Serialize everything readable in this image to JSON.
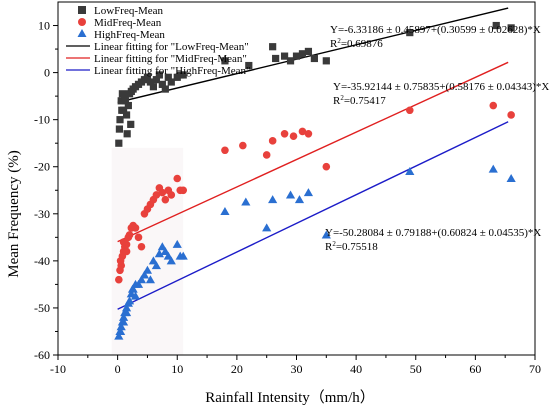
{
  "chart_data": {
    "type": "scatter",
    "xlabel": "Rainfall Intensity（mm/h）",
    "ylabel": "Mean Frequency (%)",
    "xlim": [
      -10,
      70
    ],
    "ylim": [
      -60,
      15
    ],
    "xticks": [
      -10,
      0,
      10,
      20,
      30,
      40,
      50,
      60,
      70
    ],
    "yticks": [
      -60,
      -50,
      -40,
      -30,
      -20,
      -10,
      0,
      10
    ],
    "legend_position": "top-left",
    "series": [
      {
        "name": "LowFreq-Mean",
        "marker": "square",
        "color": "#3a3a3a",
        "x": [
          0.2,
          0.4,
          0.6,
          0.8,
          1,
          1.2,
          1.5,
          1.8,
          2,
          2.3,
          2.6,
          3,
          3.5,
          4,
          4.5,
          5,
          5.5,
          6,
          6.5,
          7,
          7.5,
          8,
          8.5,
          9,
          10,
          10.5,
          11,
          0.3,
          1.6,
          2.2,
          0.7,
          1.3,
          18,
          22,
          26,
          26.5,
          28,
          29,
          30,
          31,
          32,
          33,
          35,
          49,
          63.5,
          66
        ],
        "y": [
          -15,
          -10,
          -6,
          -4.5,
          -8,
          -5,
          -9,
          -7,
          -4.5,
          -4,
          -3.5,
          -3,
          -2.5,
          -2,
          -1.5,
          -1,
          -2,
          -3,
          -1.5,
          -0.5,
          -2.5,
          -3.5,
          -1,
          -2,
          -1,
          -0.5,
          -0.5,
          -12,
          -13,
          -11,
          -8,
          -6,
          2.5,
          1.5,
          5.5,
          3,
          3.5,
          2.5,
          3.5,
          4,
          4.5,
          3,
          2.5,
          8.5,
          10,
          9.5
        ]
      },
      {
        "name": "MidFreq-Mean",
        "marker": "circle",
        "color": "#e8413c",
        "x": [
          0.2,
          0.4,
          0.6,
          0.8,
          1,
          1.2,
          1.5,
          1.8,
          2,
          2.3,
          2.6,
          3,
          3.5,
          4,
          4.5,
          5,
          5.5,
          6,
          6.5,
          7,
          7.5,
          8,
          8.5,
          9,
          10,
          10.5,
          11,
          0.5,
          1,
          1.5,
          18,
          21,
          25,
          26,
          28,
          29.5,
          31,
          32,
          35,
          49,
          63,
          66
        ],
        "y": [
          -44,
          -42,
          -41,
          -39,
          -38,
          -37,
          -36.5,
          -35,
          -34.5,
          -33,
          -32.5,
          -33,
          -35,
          -37,
          -30,
          -29,
          -28,
          -27,
          -26,
          -24.5,
          -25.5,
          -27,
          -25,
          -26,
          -22.5,
          -25,
          -25,
          -40,
          -36,
          -38,
          -16.5,
          -15.5,
          -17.5,
          -14.5,
          -13,
          -13.5,
          -12.5,
          -13,
          -20,
          -8,
          -7,
          -9
        ]
      },
      {
        "name": "HighFreq-Mean",
        "marker": "triangle",
        "color": "#2a6fd1",
        "x": [
          0.2,
          0.4,
          0.6,
          0.8,
          1,
          1.2,
          1.5,
          1.8,
          2,
          2.3,
          2.6,
          3,
          3.5,
          4,
          4.5,
          5,
          5.5,
          6,
          6.5,
          7,
          7.5,
          8,
          8.5,
          9,
          10,
          10.5,
          11,
          0.5,
          1,
          1.5,
          2.5,
          3,
          18,
          21.5,
          25,
          26,
          29,
          30.5,
          32,
          35,
          49,
          63,
          66
        ],
        "y": [
          -56,
          -55,
          -54,
          -53,
          -52,
          -51,
          -50,
          -49,
          -48.5,
          -47,
          -46,
          -47.5,
          -45,
          -44,
          -43,
          -42,
          -44,
          -40,
          -41,
          -38.5,
          -37,
          -38,
          -39,
          -40,
          -36.5,
          -39,
          -39,
          -55,
          -53,
          -51,
          -46,
          -45,
          -29.5,
          -27.5,
          -33,
          -27,
          -26,
          -27,
          -25.5,
          -34.5,
          -21,
          -20.5,
          -22.5
        ]
      }
    ],
    "fits": [
      {
        "name": "Linear fitting for \"LowFreq-Mean\"",
        "color": "#000000",
        "intercept": -6.33186,
        "slope": 0.30599,
        "x_range": [
          0,
          65.5
        ]
      },
      {
        "name": "Linear fitting for \"MidFreq-Mean\"",
        "color": "#e02020",
        "intercept": -35.92144,
        "slope": 0.58176,
        "x_range": [
          0,
          65.5
        ]
      },
      {
        "name": "Linear fitting for \"HighFreq-Mean\"",
        "color": "#1c1cc8",
        "intercept": -50.28084,
        "slope": 0.60824,
        "x_range": [
          0,
          65.5
        ]
      }
    ],
    "annotations": [
      {
        "eq": "Y=-6.33186 ± 0.45897+(0.30599 ± 0.02628)*X",
        "r2_label": "R",
        "r2_sup": "2",
        "r2_value": "=0.69876"
      },
      {
        "eq": "Y=-35.92144 ± 0.75835+(0.58176 ± 0.04343)*X",
        "r2_label": "R",
        "r2_sup": "2",
        "r2_value": "=0.75417"
      },
      {
        "eq": "Y=-50.28084 ± 0.79188+(0.60824 ± 0.04535)*X",
        "r2_label": "R",
        "r2_sup": "2",
        "r2_value": "=0.75518"
      }
    ]
  }
}
